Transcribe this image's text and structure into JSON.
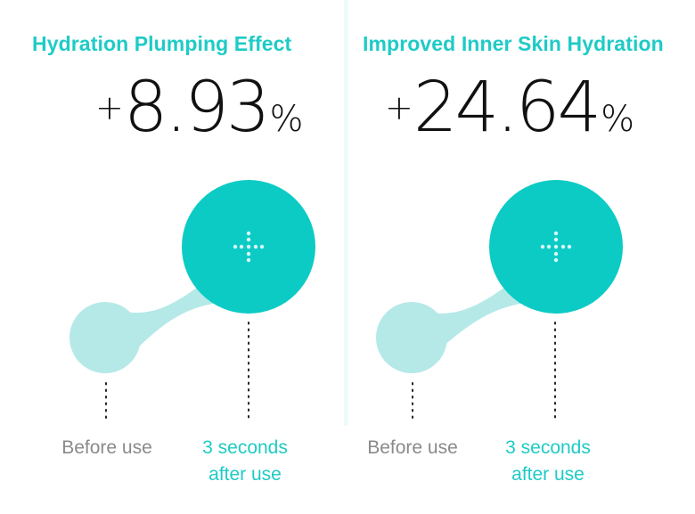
{
  "colors": {
    "accent": "#1ecbc6",
    "accent_light": "#b5e9e8",
    "text_dark": "#111111",
    "text_muted": "#8a8a8a"
  },
  "panels": [
    {
      "title": "Hydration Plumping Effect",
      "value": {
        "sign": "+",
        "number": "8.93",
        "unit": "%"
      },
      "before_label": "Before use",
      "after_label_line1": "3 seconds",
      "after_label_line2": "after use",
      "icon": "plus-dots-icon"
    },
    {
      "title": "Improved Inner Skin Hydration",
      "value": {
        "sign": "+",
        "number": "24.64",
        "unit": "%"
      },
      "before_label": "Before use",
      "after_label_line1": "3 seconds",
      "after_label_line2": "after use",
      "icon": "plus-dots-icon"
    }
  ]
}
